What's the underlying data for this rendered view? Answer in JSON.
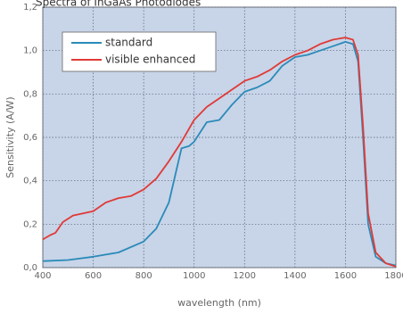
{
  "chart_data": {
    "type": "line",
    "title": "Spectra of InGaAs Photodiodes",
    "xlabel": "wavelength (nm)",
    "ylabel": "Sensitivity (A/W)",
    "xlim": [
      400,
      1800
    ],
    "ylim": [
      0,
      1.2
    ],
    "xticks": [
      400,
      600,
      800,
      1000,
      1200,
      1400,
      1600,
      1800
    ],
    "yticks": [
      {
        "value": 0,
        "label": "0,0"
      },
      {
        "value": 0.2,
        "label": "0,2"
      },
      {
        "value": 0.4,
        "label": "0,4"
      },
      {
        "value": 0.6,
        "label": "0,6"
      },
      {
        "value": 0.8,
        "label": "0,8"
      },
      {
        "value": 1.0,
        "label": "1,0"
      },
      {
        "value": 1.2,
        "label": "1,2"
      }
    ],
    "grid": true,
    "legend": "upper left",
    "series": [
      {
        "name": "standard",
        "color": "#2a8bb8",
        "x": [
          400,
          500,
          600,
          700,
          800,
          850,
          900,
          930,
          950,
          980,
          1000,
          1050,
          1100,
          1150,
          1200,
          1250,
          1300,
          1350,
          1400,
          1450,
          1500,
          1550,
          1600,
          1630,
          1650,
          1670,
          1690,
          1720,
          1760,
          1800
        ],
        "values": [
          0.03,
          0.035,
          0.05,
          0.07,
          0.12,
          0.18,
          0.3,
          0.45,
          0.55,
          0.56,
          0.58,
          0.67,
          0.68,
          0.75,
          0.81,
          0.83,
          0.86,
          0.93,
          0.97,
          0.98,
          1.0,
          1.02,
          1.04,
          1.03,
          0.95,
          0.6,
          0.2,
          0.05,
          0.02,
          0.01
        ]
      },
      {
        "name": "visible enhanced",
        "color": "#e03a36",
        "x": [
          400,
          430,
          450,
          480,
          520,
          600,
          650,
          700,
          750,
          800,
          850,
          900,
          950,
          1000,
          1050,
          1100,
          1150,
          1200,
          1250,
          1300,
          1350,
          1400,
          1450,
          1500,
          1550,
          1600,
          1630,
          1650,
          1670,
          1690,
          1720,
          1760,
          1800
        ],
        "values": [
          0.13,
          0.15,
          0.16,
          0.21,
          0.24,
          0.26,
          0.3,
          0.32,
          0.33,
          0.36,
          0.41,
          0.49,
          0.58,
          0.68,
          0.74,
          0.78,
          0.82,
          0.86,
          0.88,
          0.91,
          0.95,
          0.98,
          1.0,
          1.03,
          1.05,
          1.06,
          1.05,
          0.98,
          0.65,
          0.25,
          0.07,
          0.02,
          0.005
        ]
      }
    ]
  }
}
